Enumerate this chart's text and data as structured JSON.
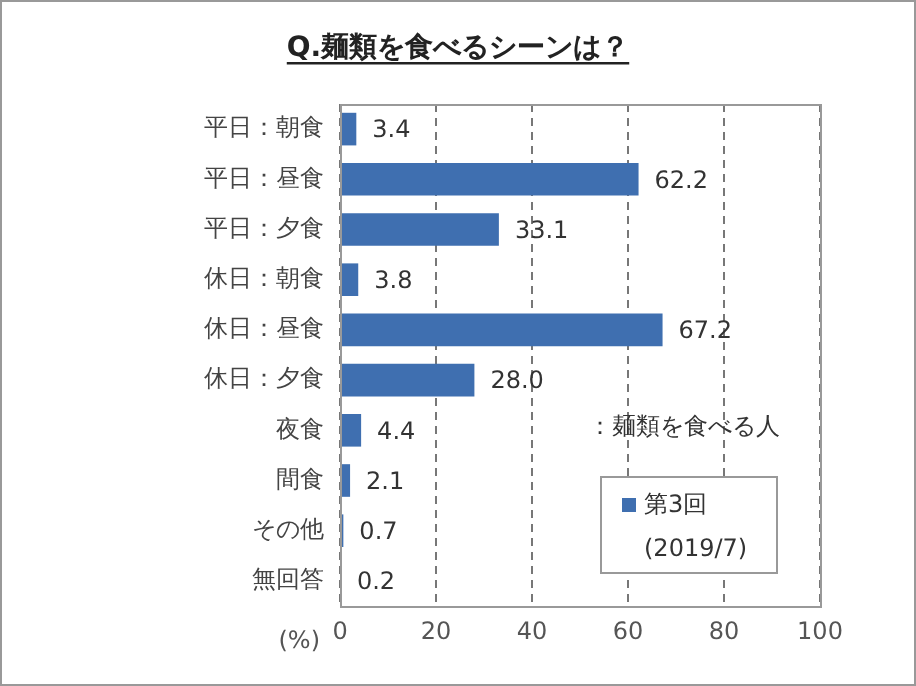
{
  "chart_data": {
    "type": "bar",
    "orientation": "horizontal",
    "title": "Q.麺類を食べるシーンは？",
    "xlabel": "(%)",
    "categories": [
      "平日：朝食",
      "平日：昼食",
      "平日：夕食",
      "休日：朝食",
      "休日：昼食",
      "休日：夕食",
      "夜食",
      "間食",
      "その他",
      "無回答"
    ],
    "series": [
      {
        "name": "第3回 (2019/7)",
        "color": "#3f6fb0",
        "values": [
          3.4,
          62.2,
          33.1,
          3.8,
          67.2,
          28.0,
          4.4,
          2.1,
          0.7,
          0.2
        ],
        "value_labels": [
          "3.4",
          "62.2",
          "33.1",
          "3.8",
          "67.2",
          "28.0",
          "4.4",
          "2.1",
          "0.7",
          "0.2"
        ]
      }
    ],
    "xlim": [
      0,
      100
    ],
    "xticks": [
      0,
      20,
      40,
      60,
      80,
      100
    ],
    "grid": "x",
    "legend": "bottom right",
    "annotations": [
      "：麺類を食べる人"
    ]
  }
}
